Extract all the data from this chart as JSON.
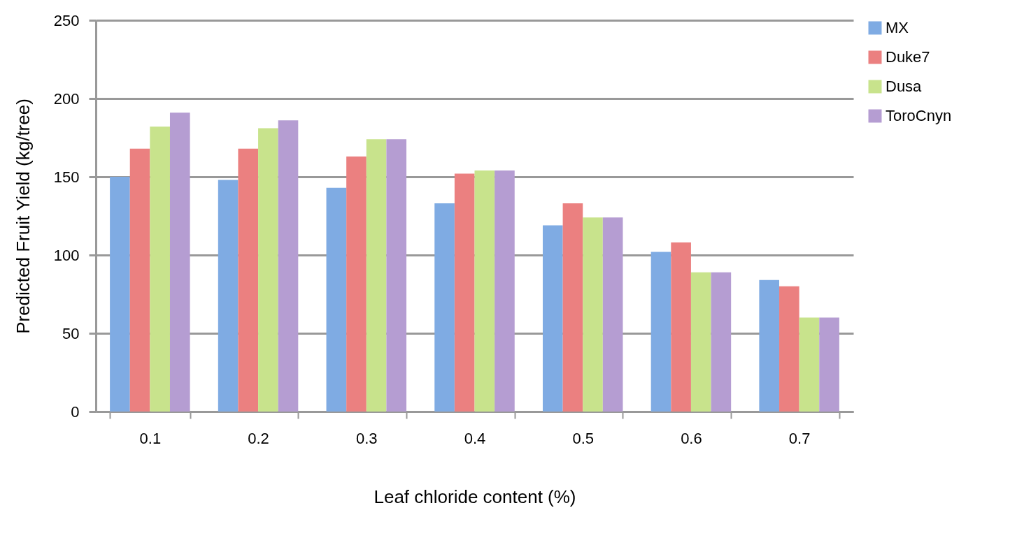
{
  "chart_data": {
    "type": "bar",
    "xlabel": "Leaf chloride content (%)",
    "ylabel": "Predicted Fruit Yield (kg/tree)",
    "categories": [
      "0.1",
      "0.2",
      "0.3",
      "0.4",
      "0.5",
      "0.6",
      "0.7"
    ],
    "series": [
      {
        "name": "MX",
        "color": "#7fabe3",
        "values": [
          150,
          148,
          143,
          133,
          119,
          102,
          84
        ]
      },
      {
        "name": "Duke7",
        "color": "#eb8080",
        "values": [
          168,
          168,
          163,
          152,
          133,
          108,
          80
        ]
      },
      {
        "name": "Dusa",
        "color": "#c8e38c",
        "values": [
          182,
          181,
          174,
          154,
          124,
          89,
          60
        ]
      },
      {
        "name": "ToroCnyn",
        "color": "#b59dd2",
        "values": [
          191,
          186,
          174,
          154,
          124,
          89,
          60
        ]
      }
    ],
    "ylim": [
      0,
      250
    ],
    "yticks": [
      0,
      50,
      100,
      150,
      200,
      250
    ],
    "grid": "y",
    "legend": "right"
  }
}
